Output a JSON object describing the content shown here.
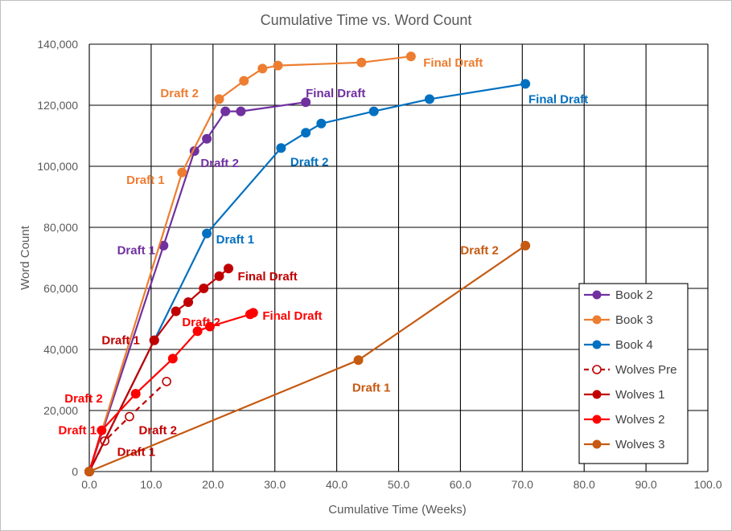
{
  "chart_data": {
    "type": "line",
    "title": "Cumulative Time vs. Word Count",
    "xlabel": "Cumulative Time (Weeks)",
    "ylabel": "Word Count",
    "xlim": [
      0,
      100
    ],
    "ylim": [
      0,
      140000
    ],
    "x_ticks": [
      "0.0",
      "10.0",
      "20.0",
      "30.0",
      "40.0",
      "50.0",
      "60.0",
      "70.0",
      "80.0",
      "90.0",
      "100.0"
    ],
    "y_ticks": [
      "0",
      "20,000",
      "40,000",
      "60,000",
      "80,000",
      "100,000",
      "120,000",
      "140,000"
    ],
    "grid": true,
    "legend_position": "right",
    "series": [
      {
        "name": "Book 2",
        "color": "#7030A0",
        "style": "solid",
        "marker": "filled",
        "points": [
          [
            0,
            0
          ],
          [
            12,
            74000
          ],
          [
            17,
            105000
          ],
          [
            19,
            109000
          ],
          [
            22,
            118000
          ],
          [
            24.5,
            118000
          ],
          [
            35,
            121000
          ]
        ]
      },
      {
        "name": "Book 3",
        "color": "#ED7D31",
        "style": "solid",
        "marker": "filled",
        "points": [
          [
            0,
            0
          ],
          [
            15,
            98000
          ],
          [
            21,
            122000
          ],
          [
            25,
            128000
          ],
          [
            28,
            132000
          ],
          [
            30.5,
            133000
          ],
          [
            44,
            134000
          ],
          [
            52,
            136000
          ]
        ]
      },
      {
        "name": "Book 4",
        "color": "#0070C0",
        "style": "solid",
        "marker": "filled",
        "points": [
          [
            0,
            0
          ],
          [
            10.5,
            43000
          ],
          [
            19,
            78000
          ],
          [
            31,
            106000
          ],
          [
            35,
            111000
          ],
          [
            37.5,
            114000
          ],
          [
            46,
            118000
          ],
          [
            55,
            122000
          ],
          [
            70.5,
            127000
          ]
        ]
      },
      {
        "name": "Wolves Pre",
        "color": "#C00000",
        "style": "dashed",
        "marker": "open",
        "points": [
          [
            0,
            0
          ],
          [
            2.5,
            10000
          ],
          [
            6.5,
            18000
          ],
          [
            12.5,
            29500
          ]
        ]
      },
      {
        "name": "Wolves 1",
        "color": "#C00000",
        "style": "solid",
        "marker": "filled",
        "points": [
          [
            0,
            0
          ],
          [
            10.5,
            43000
          ],
          [
            14,
            52500
          ],
          [
            16,
            55500
          ],
          [
            18.5,
            60000
          ],
          [
            21,
            64000
          ],
          [
            22.5,
            66500
          ]
        ]
      },
      {
        "name": "Wolves 2",
        "color": "#FF0000",
        "style": "solid",
        "marker": "filled",
        "points": [
          [
            0,
            0
          ],
          [
            2,
            13500
          ],
          [
            7.5,
            25500
          ],
          [
            13.5,
            37000
          ],
          [
            17.5,
            46000
          ],
          [
            19.5,
            47500
          ],
          [
            26,
            51500
          ],
          [
            26.5,
            52000
          ]
        ]
      },
      {
        "name": "Wolves 3",
        "color": "#C55A11",
        "style": "solid",
        "marker": "filled",
        "points": [
          [
            0,
            0
          ],
          [
            43.5,
            36500
          ],
          [
            70.5,
            74000
          ]
        ]
      }
    ],
    "annotations": [
      {
        "text": "Final Draft",
        "color": "#ED7D31",
        "x": 54,
        "y": 134000
      },
      {
        "text": "Draft 2",
        "color": "#ED7D31",
        "x": 11.5,
        "y": 124000
      },
      {
        "text": "Draft 1",
        "color": "#ED7D31",
        "x": 6,
        "y": 95500
      },
      {
        "text": "Final Draft",
        "color": "#7030A0",
        "x": 35,
        "y": 124000
      },
      {
        "text": "Draft 2",
        "color": "#7030A0",
        "x": 18,
        "y": 101000
      },
      {
        "text": "Draft 1",
        "color": "#7030A0",
        "x": 4.5,
        "y": 72500
      },
      {
        "text": "Final Draft",
        "color": "#0070C0",
        "x": 71,
        "y": 122000
      },
      {
        "text": "Draft 2",
        "color": "#0070C0",
        "x": 32.5,
        "y": 101500
      },
      {
        "text": "Draft 1",
        "color": "#0070C0",
        "x": 20.5,
        "y": 76000
      },
      {
        "text": "Final Draft",
        "color": "#C00000",
        "x": 24,
        "y": 64000
      },
      {
        "text": "Draft 1",
        "color": "#C00000",
        "x": 2,
        "y": 43000
      },
      {
        "text": "Final Draft",
        "color": "#FF0000",
        "x": 28,
        "y": 51000
      },
      {
        "text": "Draft 2",
        "color": "#FF0000",
        "x": 15,
        "y": 49000
      },
      {
        "text": "Draft 2",
        "color": "#FF0000",
        "x": -4,
        "y": 24000
      },
      {
        "text": "Draft 1",
        "color": "#FF0000",
        "x": -5,
        "y": 13500
      },
      {
        "text": "Draft 2",
        "color": "#C00000",
        "x": 8,
        "y": 13500
      },
      {
        "text": "Draft 1",
        "color": "#C00000",
        "x": 4.5,
        "y": 6500
      },
      {
        "text": "Draft 2",
        "color": "#C55A11",
        "x": 60,
        "y": 72500
      },
      {
        "text": "Draft 1",
        "color": "#C55A11",
        "x": 42.5,
        "y": 27500
      }
    ]
  }
}
